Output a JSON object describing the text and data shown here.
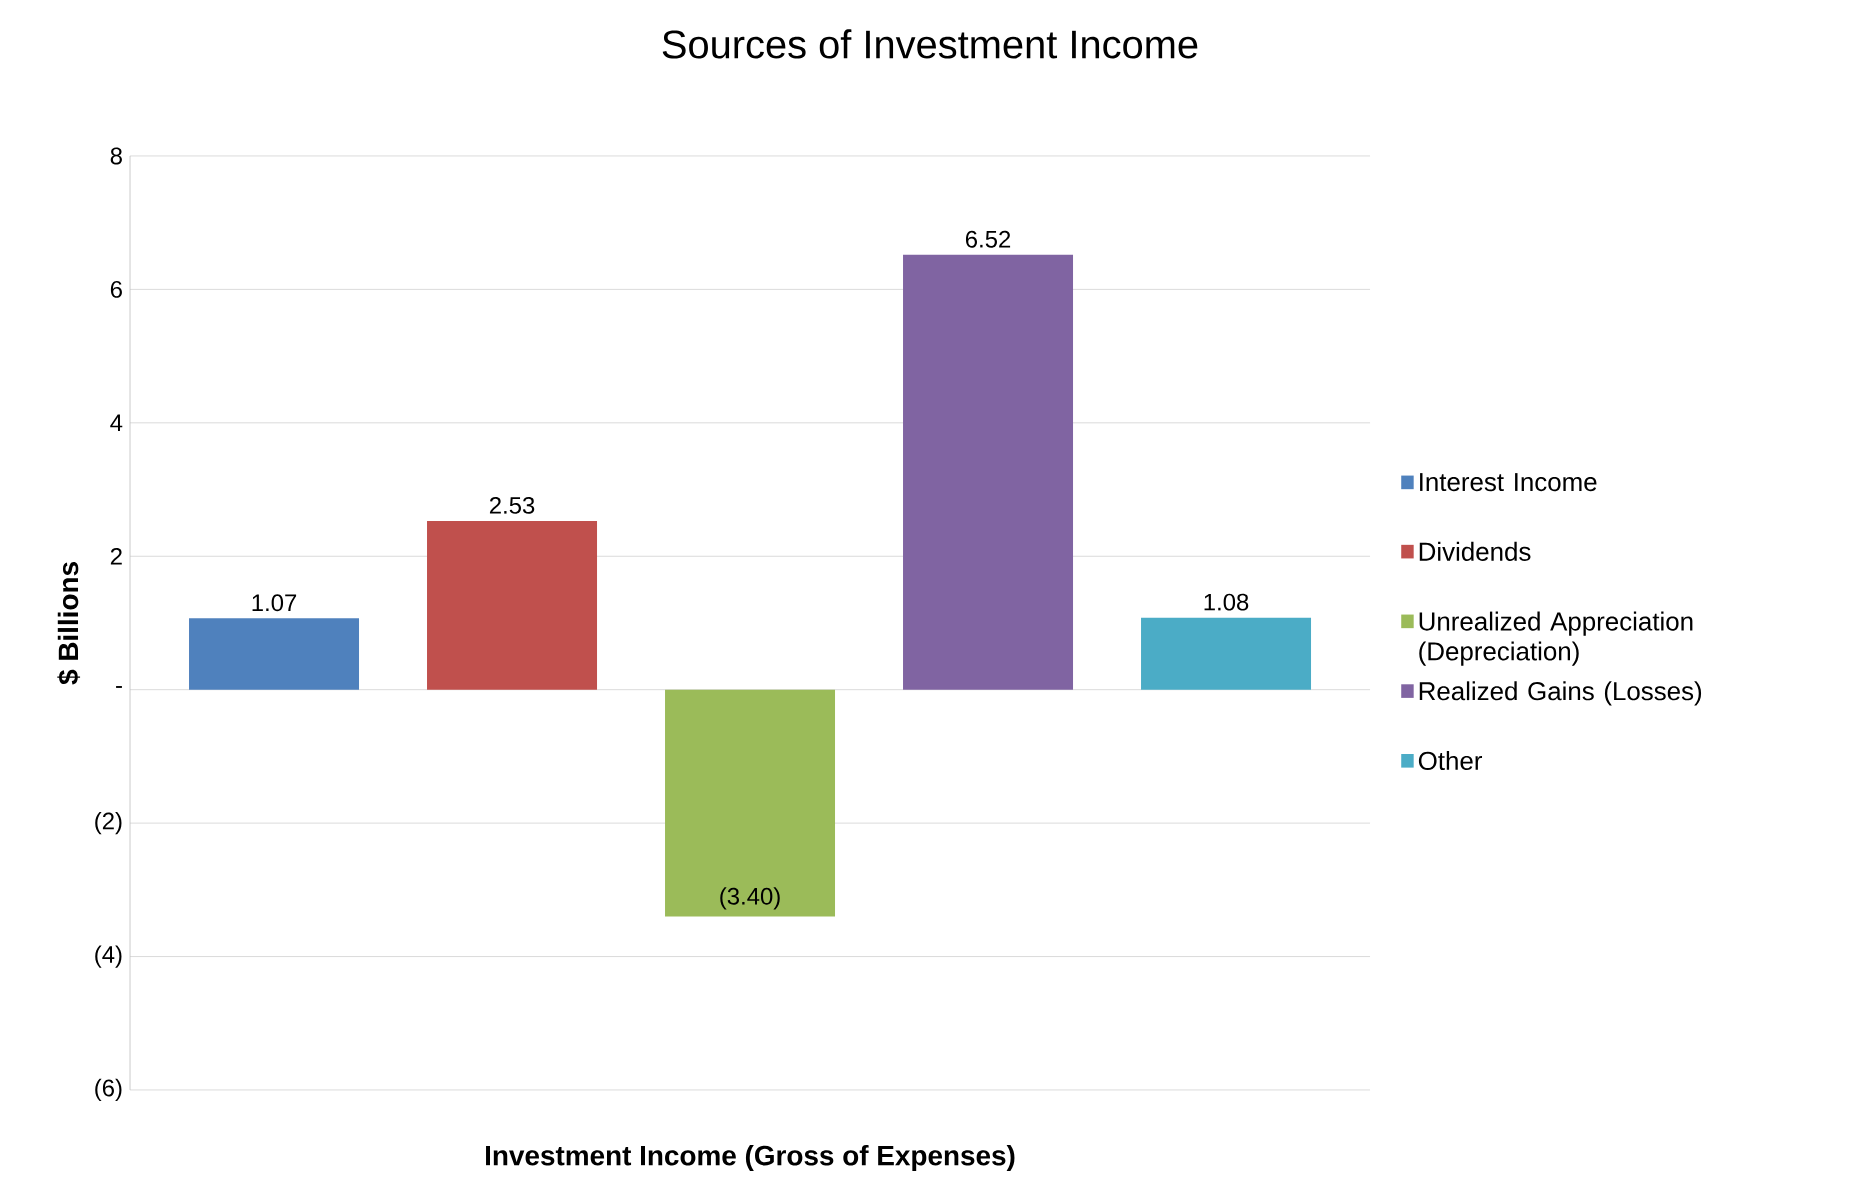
{
  "chart_data": {
    "type": "bar",
    "title": "Sources of Investment Income",
    "xlabel": "Investment Income (Gross of Expenses)",
    "ylabel": "$ Billions",
    "categories": [
      null
    ],
    "series": [
      {
        "name": "Interest Income",
        "color": "#4f81bd",
        "values": [
          1.07
        ],
        "value_labels": [
          "1.07"
        ]
      },
      {
        "name": "Dividends",
        "color": "#c0504d",
        "values": [
          2.53
        ],
        "value_labels": [
          "2.53"
        ]
      },
      {
        "name": "Unrealized Appreciation (Depreciation)",
        "color": "#9bbb59",
        "values": [
          -3.4
        ],
        "value_labels": [
          "(3.40)"
        ]
      },
      {
        "name": "Realized Gains (Losses)",
        "color": "#8064a2",
        "values": [
          6.52
        ],
        "value_labels": [
          "6.52"
        ]
      },
      {
        "name": "Other",
        "color": "#4bacc6",
        "values": [
          1.08
        ],
        "value_labels": [
          "1.08"
        ]
      }
    ],
    "ylim": [
      -6,
      8
    ],
    "yticks": [
      {
        "value": -6,
        "label": "(6)"
      },
      {
        "value": -4,
        "label": "(4)"
      },
      {
        "value": -2,
        "label": "(2)"
      },
      {
        "value": 0,
        "label": "-"
      },
      2,
      4,
      6,
      8
    ],
    "grid": "y",
    "legend": "right"
  }
}
